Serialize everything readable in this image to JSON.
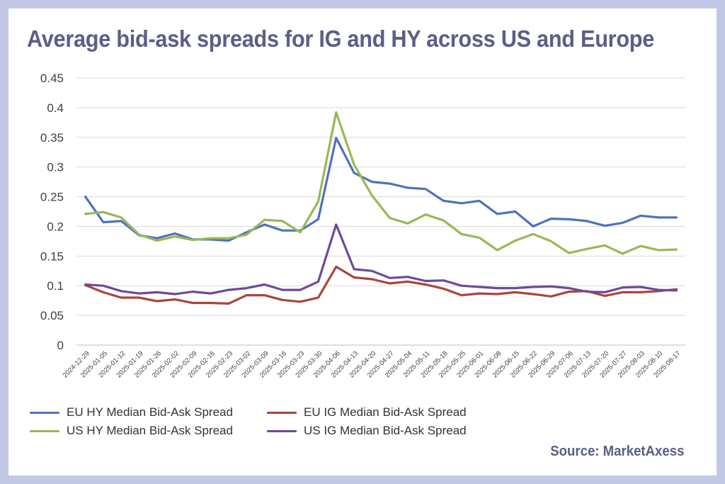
{
  "title": "Average bid-ask spreads for IG and HY across US and Europe",
  "source": "Source: MarketAxess",
  "colors": {
    "background": "#c3c8e6",
    "title": "#5b5e87",
    "gridline": "#d9d9d9"
  },
  "chart_data": {
    "type": "line",
    "title": "Average bid-ask spreads for IG and HY across US and Europe",
    "xlabel": "",
    "ylabel": "",
    "ylim": [
      0,
      0.45
    ],
    "yticks": [
      0,
      0.05,
      0.1,
      0.15,
      0.2,
      0.25,
      0.3,
      0.35,
      0.4,
      0.45
    ],
    "ytick_labels": [
      "0",
      "0.05",
      "0.1",
      "0.15",
      "0.2",
      "0.25",
      "0.3",
      "0.35",
      "0.4",
      "0.45"
    ],
    "grid": true,
    "legend_position": "bottom",
    "x": [
      "2024-12-29",
      "2025-01-05",
      "2025-01-12",
      "2025-01-19",
      "2025-01-26",
      "2025-02-02",
      "2025-02-09",
      "2025-02-16",
      "2025-02-23",
      "2025-03-02",
      "2025-03-09",
      "2025-03-16",
      "2025-03-23",
      "2025-03-30",
      "2025-04-06",
      "2025-04-13",
      "2025-04-20",
      "2025-04-27",
      "2025-05-04",
      "2025-05-11",
      "2025-05-18",
      "2025-05-25",
      "2025-06-01",
      "2025-06-08",
      "2025-06-15",
      "2025-06-22",
      "2025-06-29",
      "2025-07-06",
      "2025-07-13",
      "2025-07-20",
      "2025-07-27",
      "2025-08-03",
      "2025-08-10",
      "2025-08-17"
    ],
    "series": [
      {
        "name": "EU HY Median Bid-Ask Spread",
        "color": "#4f72bd",
        "values": [
          0.25,
          0.207,
          0.209,
          0.185,
          0.18,
          0.188,
          0.178,
          0.178,
          0.176,
          0.19,
          0.203,
          0.193,
          0.193,
          0.212,
          0.349,
          0.29,
          0.275,
          0.272,
          0.265,
          0.263,
          0.243,
          0.239,
          0.243,
          0.221,
          0.225,
          0.2,
          0.213,
          0.212,
          0.209,
          0.201,
          0.206,
          0.218,
          0.215,
          0.215
        ]
      },
      {
        "name": "EU IG Median Bid-Ask Spread",
        "color": "#a8463e",
        "values": [
          0.101,
          0.089,
          0.08,
          0.08,
          0.074,
          0.077,
          0.071,
          0.071,
          0.07,
          0.084,
          0.084,
          0.076,
          0.073,
          0.08,
          0.132,
          0.114,
          0.111,
          0.104,
          0.107,
          0.102,
          0.095,
          0.084,
          0.087,
          0.086,
          0.089,
          0.086,
          0.082,
          0.09,
          0.091,
          0.083,
          0.089,
          0.089,
          0.091,
          0.094
        ]
      },
      {
        "name": "US HY Median Bid-Ask Spread",
        "color": "#9ab856",
        "values": [
          0.221,
          0.224,
          0.215,
          0.186,
          0.176,
          0.183,
          0.177,
          0.18,
          0.18,
          0.186,
          0.211,
          0.209,
          0.19,
          0.242,
          0.392,
          0.304,
          0.252,
          0.214,
          0.205,
          0.22,
          0.21,
          0.187,
          0.181,
          0.16,
          0.176,
          0.187,
          0.175,
          0.155,
          0.162,
          0.168,
          0.154,
          0.167,
          0.16,
          0.161
        ]
      },
      {
        "name": "US IG Median Bid-Ask Spread",
        "color": "#6c4a9a",
        "values": [
          0.102,
          0.1,
          0.091,
          0.087,
          0.089,
          0.086,
          0.09,
          0.087,
          0.093,
          0.096,
          0.102,
          0.093,
          0.093,
          0.107,
          0.203,
          0.128,
          0.125,
          0.113,
          0.115,
          0.108,
          0.109,
          0.1,
          0.098,
          0.096,
          0.096,
          0.098,
          0.099,
          0.096,
          0.09,
          0.089,
          0.097,
          0.098,
          0.093,
          0.092
        ]
      }
    ]
  }
}
